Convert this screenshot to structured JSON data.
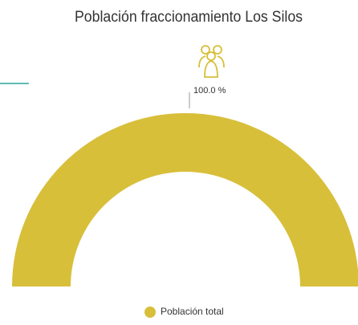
{
  "chart_data": {
    "type": "pie",
    "half": true,
    "title": "Población fraccionamiento Los Silos",
    "categories": [
      "Población total"
    ],
    "values": [
      100
    ],
    "value_labels": [
      "100.0 %"
    ],
    "colors": [
      "#d8bf3a"
    ],
    "legend": "bottom"
  }
}
